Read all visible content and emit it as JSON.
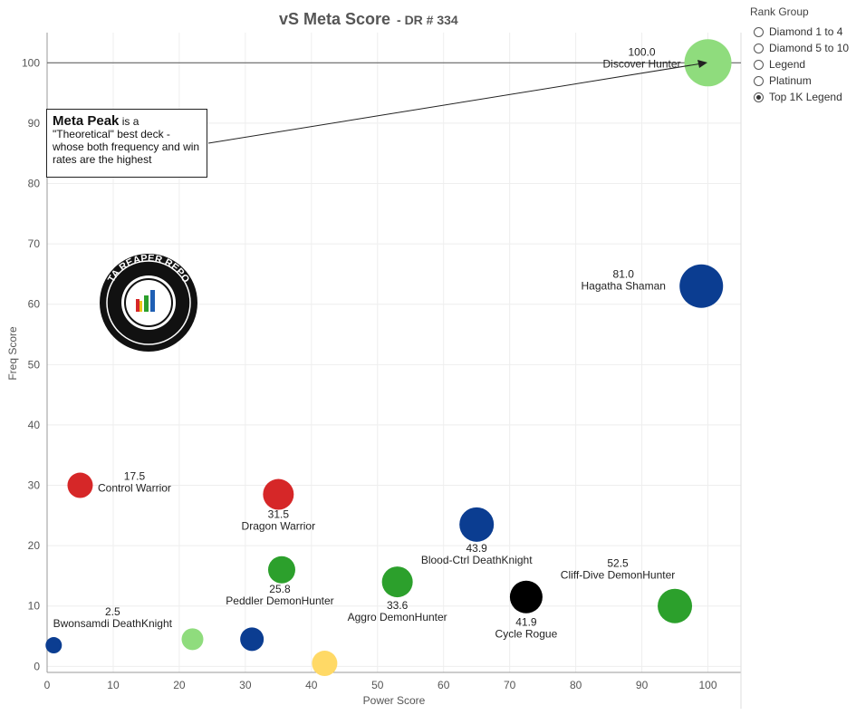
{
  "title": "vS Meta Score",
  "subtitle": "DR # 334",
  "legend": {
    "title": "Rank Group",
    "items": [
      {
        "label": "Diamond 1 to 4",
        "checked": false
      },
      {
        "label": "Diamond 5 to 10",
        "checked": false
      },
      {
        "label": "Legend",
        "checked": false
      },
      {
        "label": "Platinum",
        "checked": false
      },
      {
        "label": "Top 1K Legend",
        "checked": true
      }
    ]
  },
  "annotation": {
    "bold": "Meta Peak",
    "text": " is a \"Theoretical\" best deck - whose both frequency and win rates are the highest"
  },
  "logo_text": "DATA REAPER REPORT",
  "colors": {
    "light_green": "#8fdc7d",
    "green": "#2ca02c",
    "red": "#d62728",
    "blue": "#0b3d91",
    "black": "#000000",
    "yellow": "#ffd966"
  },
  "chart_data": {
    "type": "scatter",
    "xlabel": "Power Score",
    "ylabel": "Freq Score",
    "xlim": [
      0,
      105
    ],
    "ylim": [
      -1,
      105
    ],
    "xticks": [
      0,
      10,
      20,
      30,
      40,
      50,
      60,
      70,
      80,
      90,
      100
    ],
    "yticks": [
      0,
      10,
      20,
      30,
      40,
      50,
      60,
      70,
      80,
      90,
      100
    ],
    "grid": true,
    "reference_line_y": 100,
    "points": [
      {
        "x": 100,
        "y": 100,
        "r": 26,
        "color": "#8fdc7d",
        "value": "100.0",
        "name": "Discover Hunter"
      },
      {
        "x": 99,
        "y": 63,
        "r": 24,
        "color": "#0b3d91",
        "value": "81.0",
        "name": "Hagatha Shaman"
      },
      {
        "x": 5,
        "y": 30,
        "r": 14,
        "color": "#d62728",
        "value": "17.5",
        "name": "Control Warrior"
      },
      {
        "x": 35,
        "y": 28.5,
        "r": 17,
        "color": "#d62728",
        "value": "31.5",
        "name": "Dragon Warrior"
      },
      {
        "x": 65,
        "y": 23.5,
        "r": 19,
        "color": "#0b3d91",
        "value": "43.9",
        "name": "Blood-Ctrl DeathKnight"
      },
      {
        "x": 35.5,
        "y": 16,
        "r": 15,
        "color": "#2ca02c",
        "value": "25.8",
        "name": "Peddler DemonHunter"
      },
      {
        "x": 53,
        "y": 14,
        "r": 17,
        "color": "#2ca02c",
        "value": "33.6",
        "name": "Aggro DemonHunter"
      },
      {
        "x": 72.5,
        "y": 11.5,
        "r": 18,
        "color": "#000000",
        "value": "41.9",
        "name": "Cycle Rogue"
      },
      {
        "x": 95,
        "y": 10,
        "r": 19,
        "color": "#2ca02c",
        "value": "52.5",
        "name": "Cliff-Dive DemonHunter"
      },
      {
        "x": 1,
        "y": 3.5,
        "r": 9,
        "color": "#0b3d91",
        "value": "2.5",
        "name": "Bwonsamdi DeathKnight"
      },
      {
        "x": 22,
        "y": 4.5,
        "r": 12,
        "color": "#8fdc7d",
        "value": "",
        "name": ""
      },
      {
        "x": 31,
        "y": 4.5,
        "r": 13,
        "color": "#0b3d91",
        "value": "",
        "name": ""
      },
      {
        "x": 42,
        "y": 0.5,
        "r": 14,
        "color": "#ffd966",
        "value": "",
        "name": ""
      }
    ]
  }
}
